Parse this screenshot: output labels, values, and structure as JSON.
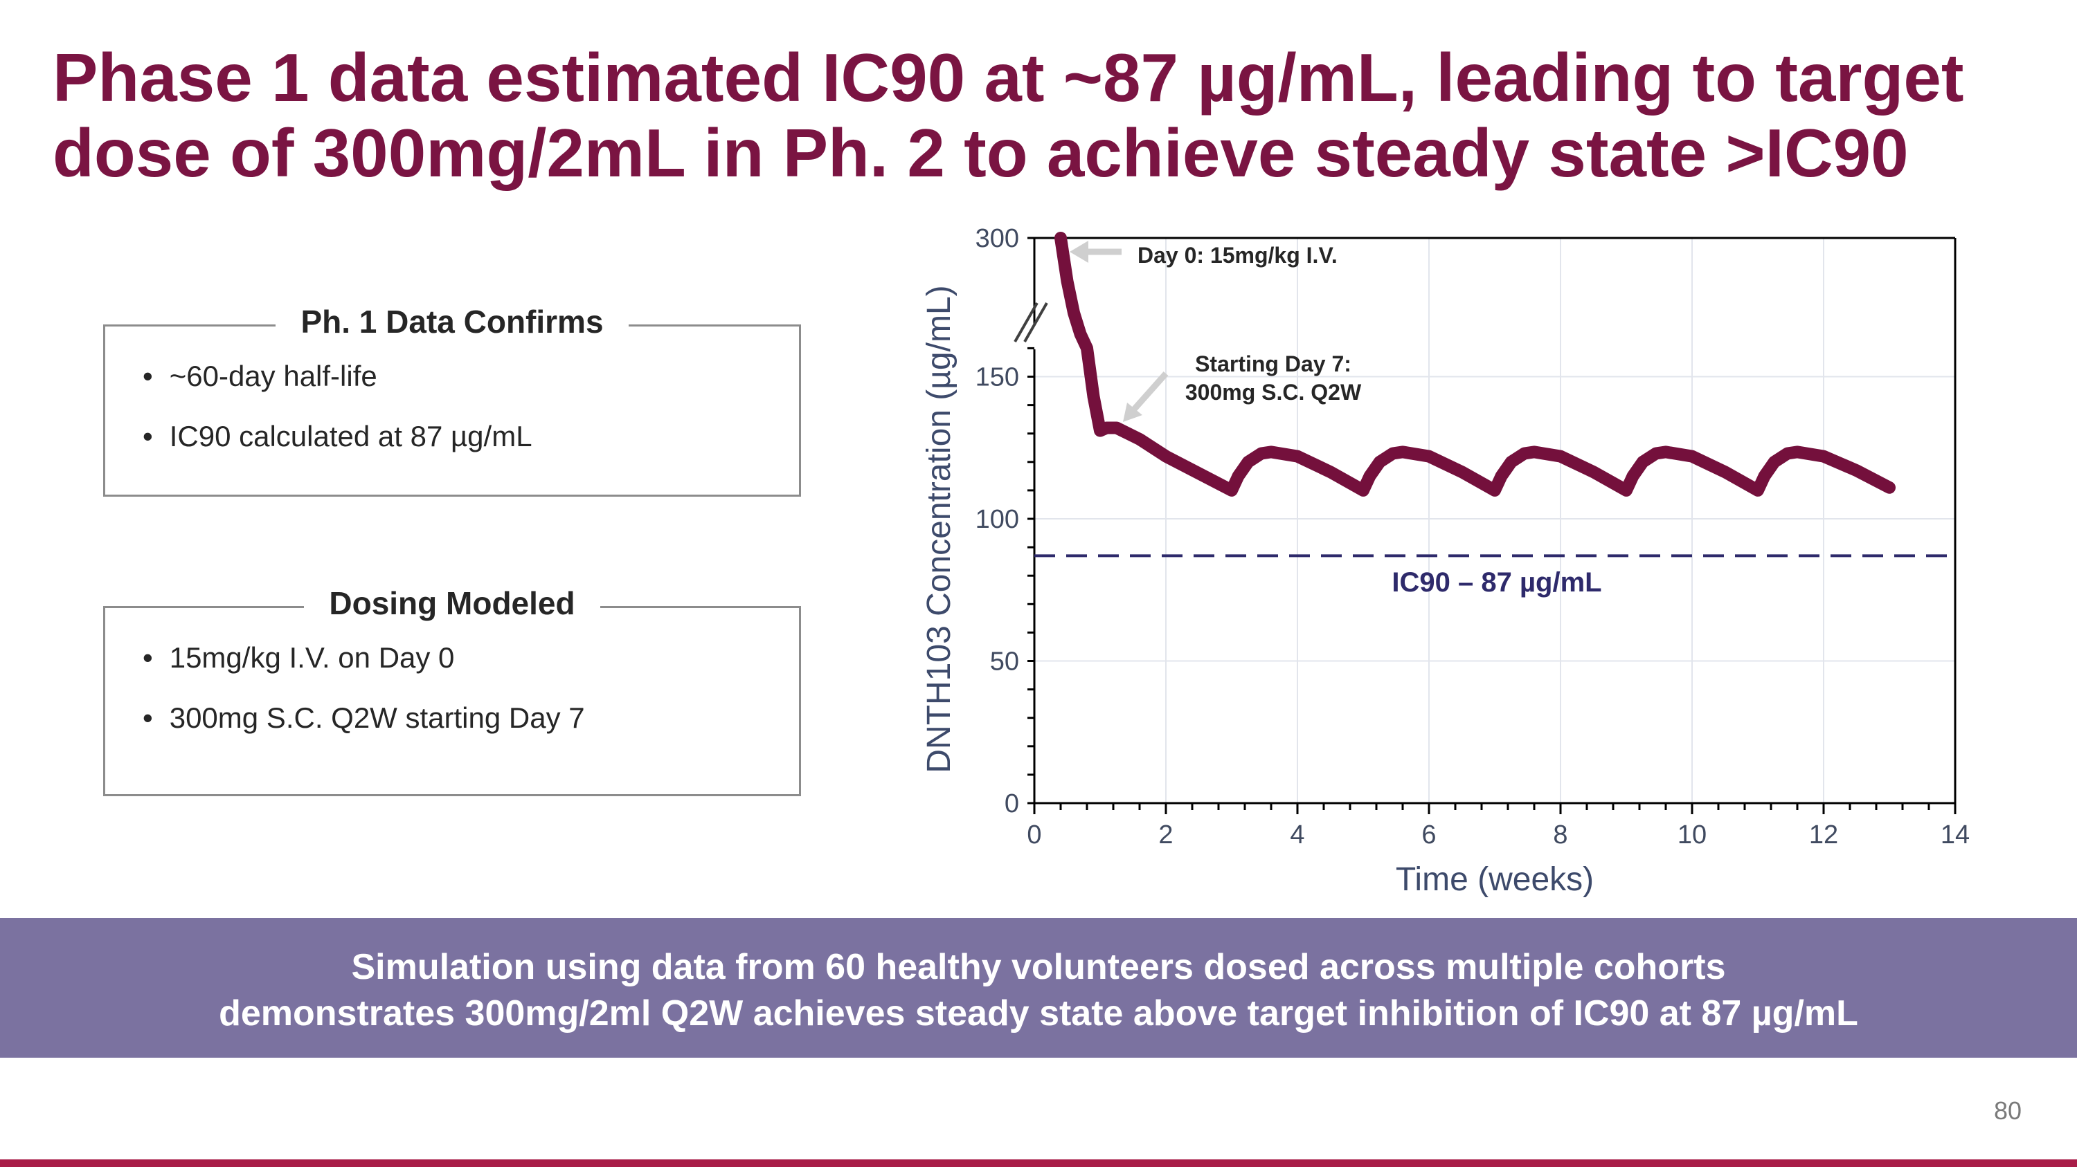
{
  "title": {
    "line1": "Phase 1 data estimated IC90 at ~87 µg/mL, leading to target",
    "line2": "dose of 300mg/2mL in Ph. 2 to achieve steady state >IC90"
  },
  "box1": {
    "heading": "Ph. 1 Data Confirms",
    "items": [
      "~60-day half-life",
      "IC90 calculated at 87 µg/mL"
    ]
  },
  "box2": {
    "heading": "Dosing Modeled",
    "items": [
      "15mg/kg I.V. on Day 0",
      "300mg S.C. Q2W starting Day 7"
    ]
  },
  "banner": {
    "line1": "Simulation using data from 60 healthy volunteers dosed across multiple cohorts",
    "line2": "demonstrates 300mg/2ml Q2W achieves steady state above target inhibition of IC90 at 87 µg/mL"
  },
  "page_number": "80",
  "colors": {
    "title": "#7a1442",
    "curve": "#74103c",
    "ic90": "#2e2a6b",
    "banner": "#7b72a0",
    "bottom_bar": "#a81d48"
  },
  "chart_data": {
    "type": "line",
    "xlabel": "Time (weeks)",
    "ylabel": "DNTH103 Concentration (µg/mL)",
    "xlim": [
      0,
      14
    ],
    "ylim": [
      0,
      300
    ],
    "y_axis_break": [
      160,
      300
    ],
    "x_ticks": [
      "0",
      "2",
      "4",
      "6",
      "8",
      "10",
      "12",
      "14"
    ],
    "y_ticks": [
      "0",
      "50",
      "100",
      "150",
      "300"
    ],
    "grid": true,
    "series": [
      {
        "points": [
          [
            0.4,
            300
          ],
          [
            0.5,
            245
          ],
          [
            0.6,
            205
          ],
          [
            0.7,
            178
          ],
          [
            0.8,
            160
          ],
          [
            0.9,
            143
          ],
          [
            1.0,
            131
          ],
          [
            1.1,
            132
          ],
          [
            1.25,
            132
          ],
          [
            1.6,
            128
          ],
          [
            2,
            122
          ],
          [
            2.5,
            116
          ],
          [
            3,
            110
          ],
          [
            3.1,
            115
          ],
          [
            3.25,
            120
          ],
          [
            3.45,
            123
          ],
          [
            3.6,
            123.5
          ],
          [
            4,
            122
          ],
          [
            4.5,
            116.5
          ],
          [
            5,
            110
          ],
          [
            5.1,
            115
          ],
          [
            5.25,
            120
          ],
          [
            5.45,
            123
          ],
          [
            5.6,
            123.5
          ],
          [
            6,
            122
          ],
          [
            6.5,
            116.5
          ],
          [
            7,
            110
          ],
          [
            7.1,
            115
          ],
          [
            7.25,
            120
          ],
          [
            7.45,
            123
          ],
          [
            7.6,
            123.5
          ],
          [
            8,
            122
          ],
          [
            8.5,
            116.5
          ],
          [
            9,
            110
          ],
          [
            9.1,
            115
          ],
          [
            9.25,
            120
          ],
          [
            9.45,
            123
          ],
          [
            9.6,
            123.5
          ],
          [
            10,
            122
          ],
          [
            10.5,
            116.5
          ],
          [
            11,
            110
          ],
          [
            11.1,
            115
          ],
          [
            11.25,
            120
          ],
          [
            11.45,
            123
          ],
          [
            11.6,
            123.5
          ],
          [
            12,
            122
          ],
          [
            12.5,
            117
          ],
          [
            13,
            111
          ]
        ]
      }
    ],
    "reference_line": {
      "y": 87,
      "label": "IC90 – 87 µg/mL",
      "style": "dashed"
    },
    "annotations": [
      {
        "text": "Day 0: 15mg/kg I.V."
      },
      {
        "text_line1": "Starting Day 7:",
        "text_line2": "300mg S.C. Q2W"
      }
    ]
  }
}
